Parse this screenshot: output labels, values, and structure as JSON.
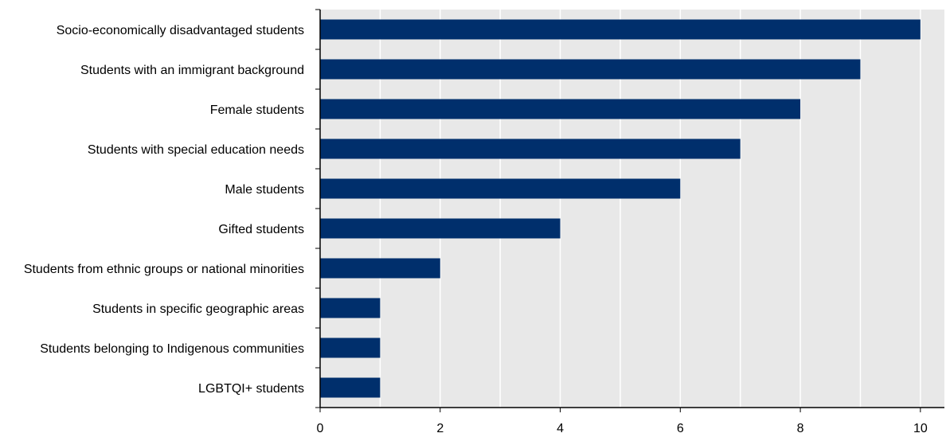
{
  "chart_data": {
    "type": "bar",
    "orientation": "horizontal",
    "categories": [
      "Socio-economically disadvantaged students",
      "Students with an immigrant background",
      "Female students",
      "Students with special education needs",
      "Male students",
      "Gifted students",
      "Students from ethnic groups or national minorities",
      "Students in specific geographic areas",
      "Students belonging to Indigenous communities",
      "LGBTQI+ students"
    ],
    "values": [
      10,
      9,
      8,
      7,
      6,
      4,
      2,
      1,
      1,
      1
    ],
    "xlim": [
      0,
      10.4
    ],
    "xticks": [
      0,
      2,
      4,
      6,
      8,
      10
    ],
    "grid": true,
    "bar_color": "#002F6C",
    "plot_background": "#E8E8E8",
    "grid_color": "#FFFFFF",
    "title": "",
    "xlabel": "",
    "ylabel": ""
  }
}
